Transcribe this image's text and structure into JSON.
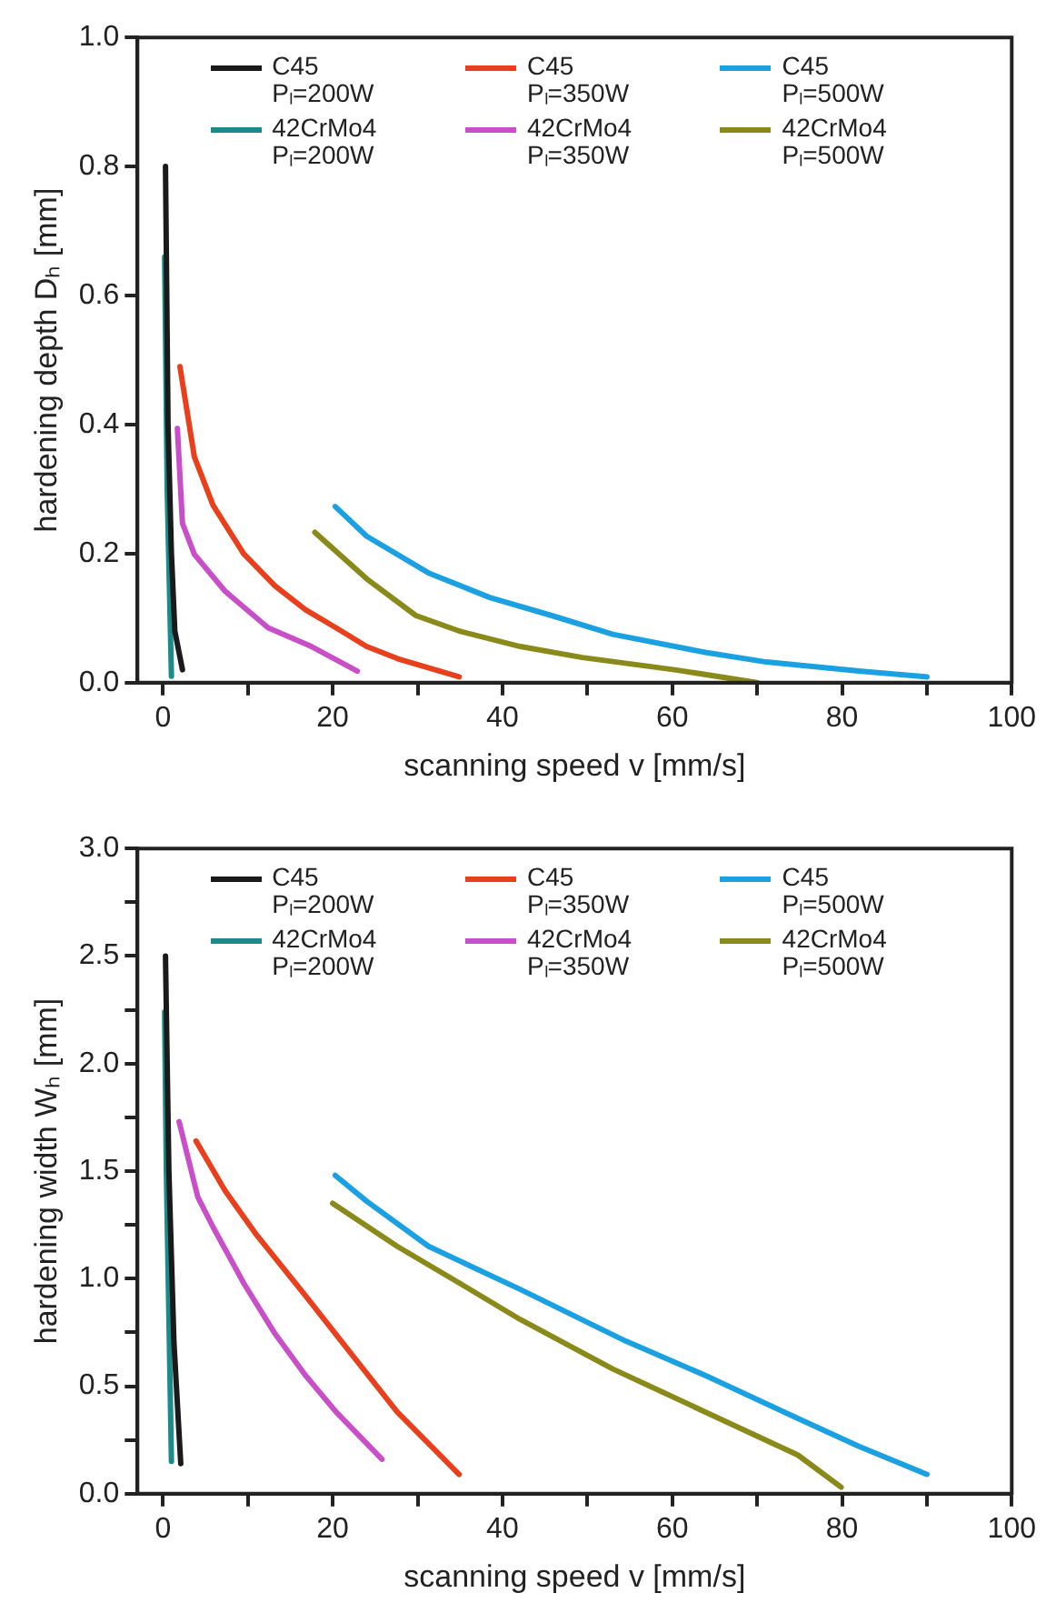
{
  "chart_data": [
    {
      "type": "line",
      "xlabel": "scanning speed v [mm/s]",
      "ylabel": "hardening depth Dₕ [mm]",
      "legend": "top",
      "grid": false,
      "marker": "none",
      "xlim": [
        -3,
        100
      ],
      "xticks": [
        0,
        {
          "value": 10,
          "label": null
        },
        20,
        {
          "value": 30,
          "label": null
        },
        40,
        {
          "value": 50,
          "label": null
        },
        60,
        {
          "value": 70,
          "label": null
        },
        80,
        {
          "value": 90,
          "label": null
        },
        100
      ],
      "ylim": [
        0,
        1.0
      ],
      "yticks": [
        {
          "value": 0,
          "label": "0.0"
        },
        {
          "value": 0.2,
          "label": "0.2"
        },
        {
          "value": 0.4,
          "label": "0.4"
        },
        {
          "value": 0.6,
          "label": "0.6"
        },
        {
          "value": 0.8,
          "label": "0.8"
        },
        {
          "value": 1.0,
          "label": "1.0"
        }
      ],
      "series": [
        {
          "name": "C45\nPₗ=200W",
          "color": "#1a1a1a",
          "x": [
            0.3,
            0.6,
            1.0,
            1.4,
            2.3
          ],
          "values": [
            0.8,
            0.4,
            0.2,
            0.08,
            0.02
          ]
        },
        {
          "name": "C45\nPₗ=350W",
          "color": "#e8401c",
          "x": [
            2.0,
            3.7,
            5.9,
            9.5,
            13.2,
            16.8,
            20.4,
            24,
            27.7,
            34.9
          ],
          "values": [
            0.49,
            0.35,
            0.275,
            0.2,
            0.15,
            0.113,
            0.085,
            0.056,
            0.037,
            0.009
          ]
        },
        {
          "name": "C45\nPₗ=500W",
          "color": "#1ba1e2",
          "x": [
            20.3,
            24,
            31.3,
            38.5,
            45.8,
            53,
            63.9,
            71.1,
            82,
            90
          ],
          "values": [
            0.273,
            0.227,
            0.17,
            0.132,
            0.104,
            0.075,
            0.047,
            0.032,
            0.018,
            0.009
          ]
        },
        {
          "name": "42CrMo4\nPₗ=200W",
          "color": "#1a8a8a",
          "x": [
            0.2,
            0.5,
            1.0
          ],
          "values": [
            0.66,
            0.3,
            0.01
          ]
        },
        {
          "name": "42CrMo4\nPₗ=350W",
          "color": "#c94fc9",
          "x": [
            1.7,
            2.3,
            3.7,
            7.3,
            12.4,
            17.5,
            22.9
          ],
          "values": [
            0.394,
            0.247,
            0.199,
            0.142,
            0.085,
            0.056,
            0.018
          ]
        },
        {
          "name": "42CrMo4\nPₗ=500W",
          "color": "#8a8a1a",
          "x": [
            17.9,
            24,
            29.8,
            34.9,
            42.1,
            49.4,
            60.3,
            70
          ],
          "values": [
            0.233,
            0.161,
            0.104,
            0.08,
            0.056,
            0.039,
            0.02,
            0.0
          ]
        }
      ]
    },
    {
      "type": "line",
      "xlabel": "scanning speed v [mm/s]",
      "ylabel": "hardening width Wₕ [mm]",
      "legend": "top",
      "grid": false,
      "marker": "none",
      "xlim": [
        -3,
        100
      ],
      "xticks": [
        0,
        {
          "value": 10,
          "label": null
        },
        20,
        {
          "value": 30,
          "label": null
        },
        40,
        {
          "value": 50,
          "label": null
        },
        60,
        {
          "value": 70,
          "label": null
        },
        80,
        {
          "value": 90,
          "label": null
        },
        100
      ],
      "ylim": [
        0,
        3.0
      ],
      "yticks": [
        {
          "value": 0,
          "label": "0.0"
        },
        {
          "value": 0.25,
          "label": null
        },
        {
          "value": 0.5,
          "label": "0.5"
        },
        {
          "value": 0.75,
          "label": null
        },
        {
          "value": 1.0,
          "label": "1.0"
        },
        {
          "value": 1.25,
          "label": null
        },
        {
          "value": 1.5,
          "label": "1.5"
        },
        {
          "value": 1.75,
          "label": null
        },
        {
          "value": 2.0,
          "label": "2.0"
        },
        {
          "value": 2.25,
          "label": null
        },
        {
          "value": 2.5,
          "label": "2.5"
        },
        {
          "value": 2.75,
          "label": null
        },
        {
          "value": 3.0,
          "label": "3.0"
        }
      ],
      "series": [
        {
          "name": "C45\nPₗ=200W",
          "color": "#1a1a1a",
          "x": [
            0.3,
            0.7,
            1.3,
            2.1
          ],
          "values": [
            2.5,
            1.5,
            0.7,
            0.14
          ]
        },
        {
          "name": "C45\nPₗ=350W",
          "color": "#e8401c",
          "x": [
            3.9,
            7.3,
            10.9,
            16.8,
            21.8,
            27.6,
            34.9
          ],
          "values": [
            1.64,
            1.41,
            1.21,
            0.92,
            0.67,
            0.38,
            0.09
          ]
        },
        {
          "name": "C45\nPₗ=500W",
          "color": "#1ba1e2",
          "x": [
            20.3,
            24,
            31.3,
            42.1,
            54.5,
            63.9,
            74.8,
            82,
            90
          ],
          "values": [
            1.48,
            1.36,
            1.15,
            0.95,
            0.71,
            0.55,
            0.35,
            0.22,
            0.09
          ]
        },
        {
          "name": "42CrMo4\nPₗ=200W",
          "color": "#1a8a8a",
          "x": [
            0.2,
            0.4,
            1.0
          ],
          "values": [
            2.24,
            1.5,
            0.15
          ]
        },
        {
          "name": "42CrMo4\nPₗ=350W",
          "color": "#c94fc9",
          "x": [
            1.9,
            4.1,
            5.9,
            9.5,
            13.1,
            16.8,
            20.4,
            25.8
          ],
          "values": [
            1.73,
            1.38,
            1.24,
            0.98,
            0.75,
            0.55,
            0.38,
            0.16
          ]
        },
        {
          "name": "42CrMo4\nPₗ=500W",
          "color": "#8a8a1a",
          "x": [
            20,
            27.6,
            34.9,
            42.1,
            53,
            63.9,
            74.8,
            79.9
          ],
          "values": [
            1.35,
            1.15,
            0.98,
            0.81,
            0.58,
            0.38,
            0.18,
            0.03
          ]
        }
      ]
    }
  ]
}
